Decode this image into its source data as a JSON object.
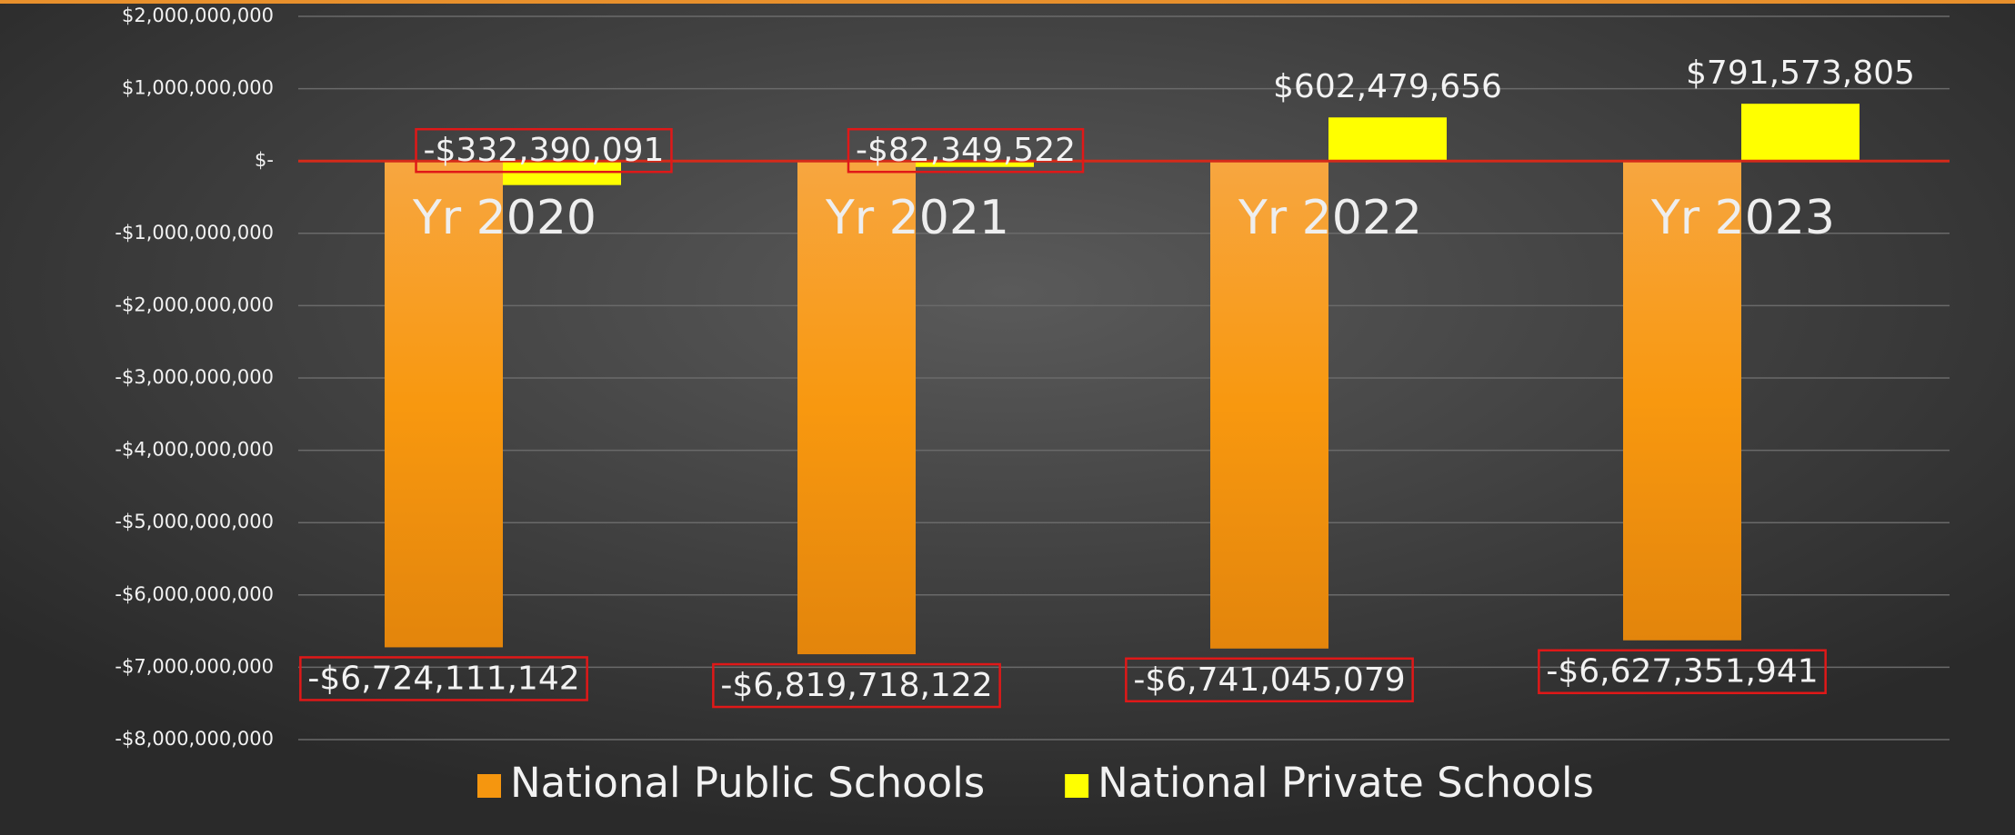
{
  "chart_data": {
    "type": "bar",
    "categories": [
      "Yr 2020",
      "Yr 2021",
      "Yr 2022",
      "Yr 2023"
    ],
    "series": [
      {
        "name": "National Public Schools",
        "color": "#f5960f",
        "values": [
          -6724111142,
          -6819718122,
          -6741045079,
          -6627351941
        ],
        "value_labels": [
          "-$6,724,111,142",
          "-$6,819,718,122",
          "-$6,741,045,079",
          "-$6,627,351,941"
        ]
      },
      {
        "name": "National Private Schools",
        "color": "#ffff00",
        "values": [
          -332390091,
          -82349522,
          602479656,
          791573805
        ],
        "value_labels": [
          "-$332,390,091",
          "-$82,349,522",
          "$602,479,656",
          "$791,573,805"
        ]
      }
    ],
    "ylim": [
      -8000000000,
      2000000000
    ],
    "yticks": [
      {
        "value": 2000000000,
        "label": "$2,000,000,000"
      },
      {
        "value": 1000000000,
        "label": "$1,000,000,000"
      },
      {
        "value": 0,
        "label": "$-"
      },
      {
        "value": -1000000000,
        "label": "-$1,000,000,000"
      },
      {
        "value": -2000000000,
        "label": "-$2,000,000,000"
      },
      {
        "value": -3000000000,
        "label": "-$3,000,000,000"
      },
      {
        "value": -4000000000,
        "label": "-$4,000,000,000"
      },
      {
        "value": -5000000000,
        "label": "-$5,000,000,000"
      },
      {
        "value": -6000000000,
        "label": "-$6,000,000,000"
      },
      {
        "value": -7000000000,
        "label": "-$7,000,000,000"
      },
      {
        "value": -8000000000,
        "label": "-$8,000,000,000"
      }
    ],
    "grid": true,
    "legend": "bottom"
  }
}
